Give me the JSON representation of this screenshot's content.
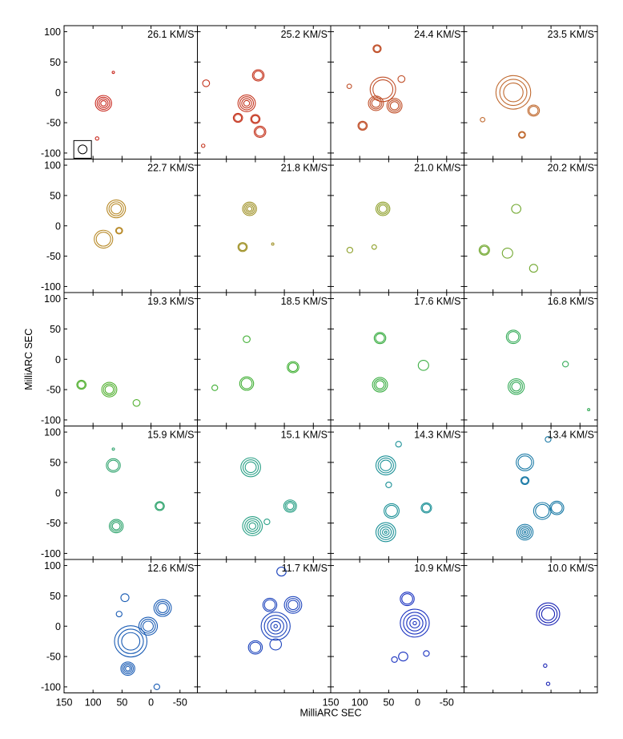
{
  "chart_data": {
    "type": "contour",
    "layout": "5x4 grid of channel maps",
    "xlabel": "MilliARC SEC",
    "ylabel": "MilliARC SEC",
    "xlim": [
      150,
      -80
    ],
    "ylim": [
      -110,
      110
    ],
    "x_ticks": [
      150,
      100,
      50,
      0,
      -50
    ],
    "x_tick_labels": [
      "150",
      "100",
      "50",
      "0",
      "-50"
    ],
    "x_tick_labels_mid": [
      "150",
      "100",
      "50",
      "0",
      "-50"
    ],
    "y_ticks": [
      100,
      50,
      0,
      -50,
      -100
    ],
    "y_tick_labels": [
      "100",
      "50",
      "0",
      "-50",
      "-100"
    ],
    "beam_panel": 0,
    "beam_center": [
      118,
      -94
    ],
    "panels": [
      {
        "label": "26.1 KM/S",
        "color": "#c8281e",
        "blobs": [
          {
            "x": 82,
            "y": -18,
            "r": 14,
            "n": 4
          },
          {
            "x": 65,
            "y": 33,
            "r": 2,
            "n": 1
          },
          {
            "x": 93,
            "y": -76,
            "r": 3,
            "n": 1
          }
        ]
      },
      {
        "label": "25.2 KM/S",
        "color": "#c4331c",
        "blobs": [
          {
            "x": 65,
            "y": -18,
            "r": 15,
            "n": 4
          },
          {
            "x": 80,
            "y": -42,
            "r": 8,
            "n": 2
          },
          {
            "x": 50,
            "y": -44,
            "r": 8,
            "n": 2
          },
          {
            "x": 135,
            "y": 15,
            "r": 6,
            "n": 1
          },
          {
            "x": 45,
            "y": 28,
            "r": 10,
            "n": 2
          },
          {
            "x": 42,
            "y": -65,
            "r": 10,
            "n": 2
          },
          {
            "x": 140,
            "y": -88,
            "r": 3,
            "n": 1
          }
        ]
      },
      {
        "label": "24.4 KM/S",
        "color": "#c0502a",
        "blobs": [
          {
            "x": 72,
            "y": -18,
            "r": 13,
            "n": 3
          },
          {
            "x": 40,
            "y": -22,
            "r": 13,
            "n": 3
          },
          {
            "x": 60,
            "y": 5,
            "r": 22,
            "n": 2
          },
          {
            "x": 70,
            "y": 72,
            "r": 7,
            "n": 2
          },
          {
            "x": 95,
            "y": -55,
            "r": 8,
            "n": 2
          },
          {
            "x": 118,
            "y": 10,
            "r": 4,
            "n": 1
          },
          {
            "x": 28,
            "y": 22,
            "r": 6,
            "n": 1
          }
        ]
      },
      {
        "label": "23.5 KM/S",
        "color": "#c06a30",
        "blobs": [
          {
            "x": 65,
            "y": 0,
            "r": 30,
            "n": 3
          },
          {
            "x": 30,
            "y": -30,
            "r": 10,
            "n": 2
          },
          {
            "x": 118,
            "y": -45,
            "r": 4,
            "n": 1
          },
          {
            "x": 50,
            "y": -70,
            "r": 6,
            "n": 2
          }
        ]
      },
      {
        "label": "22.7 KM/S",
        "color": "#b88a28",
        "blobs": [
          {
            "x": 60,
            "y": 28,
            "r": 16,
            "n": 3
          },
          {
            "x": 82,
            "y": -22,
            "r": 16,
            "n": 2
          },
          {
            "x": 55,
            "y": -8,
            "r": 6,
            "n": 2
          }
        ]
      },
      {
        "label": "21.8 KM/S",
        "color": "#a09228",
        "blobs": [
          {
            "x": 60,
            "y": 28,
            "r": 12,
            "n": 4
          },
          {
            "x": 72,
            "y": -35,
            "r": 8,
            "n": 2
          },
          {
            "x": 20,
            "y": -30,
            "r": 2,
            "n": 1
          }
        ]
      },
      {
        "label": "21.0 KM/S",
        "color": "#8ea02a",
        "blobs": [
          {
            "x": 60,
            "y": 28,
            "r": 12,
            "n": 3
          },
          {
            "x": 117,
            "y": -40,
            "r": 5,
            "n": 1
          },
          {
            "x": 75,
            "y": -35,
            "r": 4,
            "n": 1
          }
        ]
      },
      {
        "label": "20.2 KM/S",
        "color": "#72a830",
        "blobs": [
          {
            "x": 60,
            "y": 28,
            "r": 8,
            "n": 1
          },
          {
            "x": 115,
            "y": -40,
            "r": 9,
            "n": 2
          },
          {
            "x": 75,
            "y": -45,
            "r": 9,
            "n": 1
          },
          {
            "x": 30,
            "y": -70,
            "r": 7,
            "n": 1
          }
        ]
      },
      {
        "label": "19.3 KM/S",
        "color": "#52b030",
        "blobs": [
          {
            "x": 72,
            "y": -50,
            "r": 13,
            "n": 3
          },
          {
            "x": 120,
            "y": -42,
            "r": 8,
            "n": 2
          },
          {
            "x": 25,
            "y": -72,
            "r": 6,
            "n": 1
          }
        ]
      },
      {
        "label": "18.5 KM/S",
        "color": "#42b036",
        "blobs": [
          {
            "x": 65,
            "y": -40,
            "r": 12,
            "n": 2
          },
          {
            "x": 65,
            "y": 33,
            "r": 6,
            "n": 1
          },
          {
            "x": 120,
            "y": -47,
            "r": 5,
            "n": 1
          },
          {
            "x": -15,
            "y": -13,
            "r": 10,
            "n": 2
          }
        ]
      },
      {
        "label": "17.6 KM/S",
        "color": "#3cae44",
        "blobs": [
          {
            "x": 65,
            "y": 35,
            "r": 10,
            "n": 2
          },
          {
            "x": 65,
            "y": -42,
            "r": 13,
            "n": 3
          },
          {
            "x": -10,
            "y": -10,
            "r": 9,
            "n": 1
          }
        ]
      },
      {
        "label": "16.8 KM/S",
        "color": "#38ac5a",
        "blobs": [
          {
            "x": 65,
            "y": 37,
            "r": 12,
            "n": 2
          },
          {
            "x": 60,
            "y": -45,
            "r": 14,
            "n": 3
          },
          {
            "x": -25,
            "y": -8,
            "r": 5,
            "n": 1
          },
          {
            "x": -65,
            "y": -83,
            "r": 2,
            "n": 1
          }
        ]
      },
      {
        "label": "15.9 KM/S",
        "color": "#30a46e",
        "blobs": [
          {
            "x": 65,
            "y": 45,
            "r": 12,
            "n": 2
          },
          {
            "x": 60,
            "y": -55,
            "r": 12,
            "n": 3
          },
          {
            "x": -15,
            "y": -22,
            "r": 8,
            "n": 2
          },
          {
            "x": 65,
            "y": 72,
            "r": 2,
            "n": 1
          }
        ]
      },
      {
        "label": "15.1 KM/S",
        "color": "#2aa086",
        "blobs": [
          {
            "x": 58,
            "y": 42,
            "r": 17,
            "n": 3
          },
          {
            "x": 55,
            "y": -55,
            "r": 17,
            "n": 4
          },
          {
            "x": -10,
            "y": -22,
            "r": 11,
            "n": 3
          },
          {
            "x": 30,
            "y": -48,
            "r": 5,
            "n": 1
          }
        ]
      },
      {
        "label": "14.3 KM/S",
        "color": "#1e9298",
        "blobs": [
          {
            "x": 55,
            "y": 45,
            "r": 17,
            "n": 3
          },
          {
            "x": 55,
            "y": -65,
            "r": 17,
            "n": 5
          },
          {
            "x": 45,
            "y": -30,
            "r": 13,
            "n": 2
          },
          {
            "x": -15,
            "y": -25,
            "r": 9,
            "n": 2
          },
          {
            "x": 50,
            "y": 13,
            "r": 5,
            "n": 1
          },
          {
            "x": 33,
            "y": 80,
            "r": 5,
            "n": 1
          }
        ]
      },
      {
        "label": "13.4 KM/S",
        "color": "#1a7aa6",
        "blobs": [
          {
            "x": 45,
            "y": 50,
            "r": 15,
            "n": 2
          },
          {
            "x": 45,
            "y": -65,
            "r": 14,
            "n": 5
          },
          {
            "x": 15,
            "y": -30,
            "r": 15,
            "n": 2
          },
          {
            "x": -10,
            "y": -25,
            "r": 12,
            "n": 2
          },
          {
            "x": 45,
            "y": 20,
            "r": 7,
            "n": 2
          },
          {
            "x": 5,
            "y": 88,
            "r": 5,
            "n": 1
          }
        ]
      },
      {
        "label": "12.6 KM/S",
        "color": "#1a5cb4",
        "blobs": [
          {
            "x": 35,
            "y": -25,
            "r": 28,
            "n": 3
          },
          {
            "x": 40,
            "y": -70,
            "r": 12,
            "n": 4
          },
          {
            "x": -20,
            "y": 30,
            "r": 15,
            "n": 3
          },
          {
            "x": 5,
            "y": 0,
            "r": 16,
            "n": 3
          },
          {
            "x": 45,
            "y": 47,
            "r": 7,
            "n": 1
          },
          {
            "x": 55,
            "y": 20,
            "r": 5,
            "n": 1
          },
          {
            "x": -10,
            "y": -100,
            "r": 5,
            "n": 1
          }
        ]
      },
      {
        "label": "11.7 KM/S",
        "color": "#1d44bc",
        "blobs": [
          {
            "x": 15,
            "y": 0,
            "r": 25,
            "n": 5
          },
          {
            "x": -15,
            "y": 35,
            "r": 15,
            "n": 3
          },
          {
            "x": 25,
            "y": 35,
            "r": 12,
            "n": 2
          },
          {
            "x": 50,
            "y": -35,
            "r": 12,
            "n": 2
          },
          {
            "x": 15,
            "y": -30,
            "r": 10,
            "n": 1
          },
          {
            "x": 5,
            "y": 90,
            "r": 8,
            "n": 1
          }
        ]
      },
      {
        "label": "10.9 KM/S",
        "color": "#1a32c0",
        "blobs": [
          {
            "x": 5,
            "y": 5,
            "r": 25,
            "n": 5
          },
          {
            "x": 18,
            "y": 45,
            "r": 12,
            "n": 2
          },
          {
            "x": 25,
            "y": -50,
            "r": 8,
            "n": 1
          },
          {
            "x": 40,
            "y": -55,
            "r": 5,
            "n": 1
          },
          {
            "x": -15,
            "y": -45,
            "r": 5,
            "n": 1
          }
        ]
      },
      {
        "label": "10.0 KM/S",
        "color": "#1a24b4",
        "blobs": [
          {
            "x": 5,
            "y": 20,
            "r": 20,
            "n": 3
          },
          {
            "x": 10,
            "y": -65,
            "r": 3,
            "n": 1
          },
          {
            "x": 5,
            "y": -95,
            "r": 3,
            "n": 1
          }
        ]
      }
    ]
  }
}
